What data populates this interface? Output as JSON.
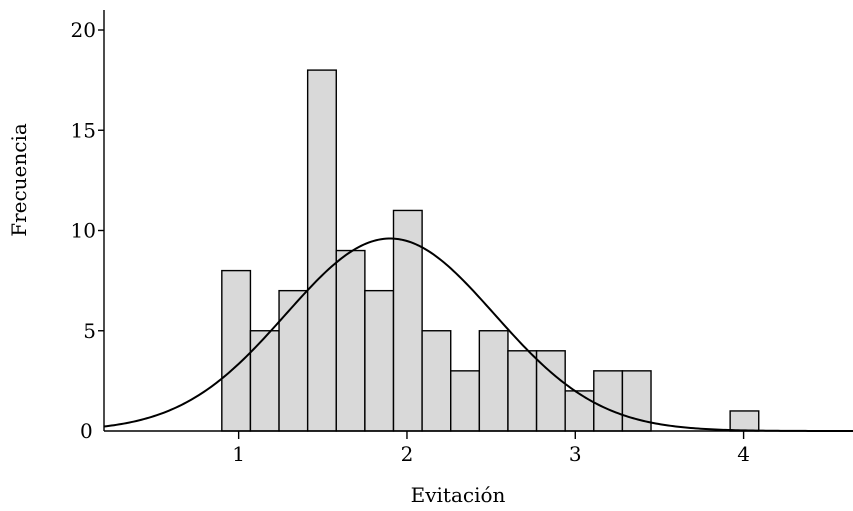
{
  "chart_data": {
    "type": "bar",
    "subtype": "histogram-with-normal-curve",
    "xlabel": "Evitación",
    "ylabel": "Frecuencia",
    "xlim": [
      0.2,
      4.65
    ],
    "ylim": [
      0,
      20
    ],
    "x_ticks": [
      1,
      2,
      3,
      4
    ],
    "y_ticks": [
      0,
      5,
      10,
      15,
      20
    ],
    "bin_width": 0.17,
    "bins": [
      {
        "start": 0.9,
        "count": 8
      },
      {
        "start": 1.07,
        "count": 5
      },
      {
        "start": 1.24,
        "count": 7
      },
      {
        "start": 1.41,
        "count": 18
      },
      {
        "start": 1.58,
        "count": 9
      },
      {
        "start": 1.75,
        "count": 7
      },
      {
        "start": 1.92,
        "count": 11
      },
      {
        "start": 2.09,
        "count": 5
      },
      {
        "start": 2.26,
        "count": 3
      },
      {
        "start": 2.43,
        "count": 5
      },
      {
        "start": 2.6,
        "count": 4
      },
      {
        "start": 2.77,
        "count": 4
      },
      {
        "start": 2.94,
        "count": 2
      },
      {
        "start": 3.11,
        "count": 3
      },
      {
        "start": 3.28,
        "count": 3
      },
      {
        "start": 3.92,
        "count": 1
      }
    ],
    "normal_curve": {
      "mean": 1.9,
      "sd": 0.62,
      "peak": 9.6
    },
    "grid": false,
    "legend": "none",
    "colors": {
      "bar_fill": "#d9d9d9",
      "bar_stroke": "#000000",
      "curve": "#000000"
    }
  }
}
